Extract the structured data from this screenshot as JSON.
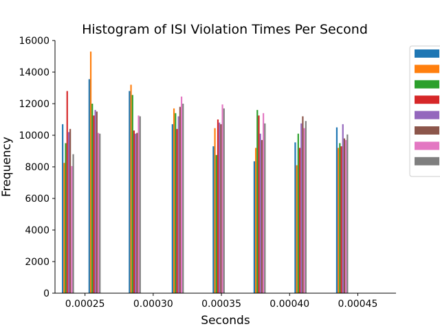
{
  "chart_data": {
    "type": "bar",
    "title": "Histogram of ISI Violation Times Per Second",
    "xlabel": "Seconds",
    "ylabel": "Frequency",
    "xlim": [
      0.000228,
      0.000478
    ],
    "ylim": [
      0,
      16000
    ],
    "xticks": [
      "0.00025",
      "0.00030",
      "0.00035",
      "0.00040",
      "0.00045"
    ],
    "xtick_values": [
      0.00025,
      0.0003,
      0.00035,
      0.0004,
      0.00045
    ],
    "yticks": [
      "0",
      "2000",
      "4000",
      "6000",
      "8000",
      "10000",
      "12000",
      "14000",
      "16000"
    ],
    "ytick_values": [
      0,
      2000,
      4000,
      6000,
      8000,
      10000,
      12000,
      14000,
      16000
    ],
    "legend_position": "right, outside top",
    "grid": false,
    "bin_centers": [
      0.0002375,
      0.000257,
      0.0002865,
      0.000318,
      0.000348,
      0.000378,
      0.000408,
      0.0004385
    ],
    "series": [
      {
        "color": "#1f77b4",
        "values": [
          10700,
          13550,
          12800,
          10700,
          9300,
          8350,
          9550,
          10500
        ]
      },
      {
        "color": "#ff7f0e",
        "values": [
          8250,
          15300,
          13200,
          11700,
          10450,
          9200,
          8100,
          9200
        ]
      },
      {
        "color": "#2ca02c",
        "values": [
          9500,
          12000,
          12550,
          11400,
          8750,
          11600,
          10100,
          9500
        ]
      },
      {
        "color": "#d62728",
        "values": [
          12800,
          11250,
          10300,
          10400,
          11000,
          11250,
          9200,
          9300
        ]
      },
      {
        "color": "#9467bd",
        "values": [
          10200,
          11600,
          10100,
          11200,
          10800,
          10100,
          10750,
          10700
        ]
      },
      {
        "color": "#8c564b",
        "values": [
          10400,
          11500,
          10150,
          11800,
          10700,
          9700,
          11200,
          9800
        ]
      },
      {
        "color": "#e377c2",
        "values": [
          8050,
          10150,
          11250,
          12450,
          11950,
          11400,
          10450,
          9700
        ]
      },
      {
        "color": "#7f7f7f",
        "values": [
          8800,
          10100,
          11200,
          12000,
          11700,
          10750,
          10900,
          10050
        ]
      }
    ]
  }
}
